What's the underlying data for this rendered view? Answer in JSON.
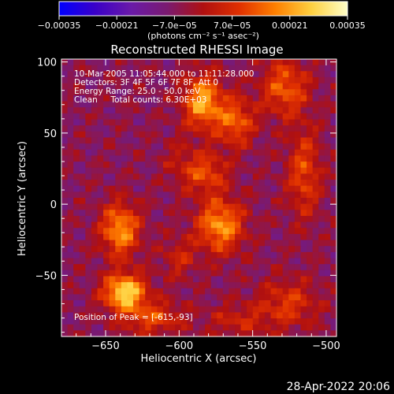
{
  "chart_data": {
    "type": "heatmap",
    "title": "Reconstructed RHESSI Image",
    "xlabel": "Heliocentric X (arcsec)",
    "ylabel": "Heliocentric Y (arcsec)",
    "xlim": [
      -680,
      -493
    ],
    "ylim": [
      -93,
      102
    ],
    "xticks": [
      -650,
      -600,
      -550,
      -500
    ],
    "xtick_labels": [
      "−650",
      "−600",
      "−550",
      "−500"
    ],
    "yticks": [
      -50,
      0,
      50,
      100
    ],
    "ytick_labels": [
      "−50",
      "0",
      "50",
      "100"
    ],
    "colorbar": {
      "range": [
        -0.00035,
        0.00035
      ],
      "ticks": [
        -0.00035,
        -0.00021,
        -7e-05,
        7e-05,
        0.00021,
        0.00035
      ],
      "tick_labels": [
        "−0.00035",
        "−0.00021",
        "−7.0e−05",
        "7.0e−05",
        "0.00021",
        "0.00035"
      ],
      "unit_label": "(photons cm⁻² s⁻¹ asec⁻²)",
      "colors": [
        "#0000ff",
        "#3a00c8",
        "#6a1aa8",
        "#7a1a70",
        "#b01010",
        "#e03000",
        "#ff8000",
        "#ffd040",
        "#ffffc8"
      ]
    },
    "annotations": [
      "10-Mar-2005 11:05:44.000 to 11:11:28.000",
      "Detectors: 3F 4F 5F 6F 7F 8F, Att 0",
      "Energy Range: 25.0 - 50.0 keV",
      "Clean     Total counts: 6.30E+03"
    ],
    "peak_label": "Position of Peak = [-615,-93]",
    "peak": [
      -615,
      -93
    ],
    "sources": [
      {
        "x": -637,
        "y": -62,
        "peak": 0.00035,
        "sx": 10,
        "sy": 9
      },
      {
        "x": -640,
        "y": -18,
        "peak": 0.00026,
        "sx": 9,
        "sy": 13
      },
      {
        "x": -618,
        "y": -80,
        "peak": 0.00016,
        "sx": 14,
        "sy": 8
      },
      {
        "x": -572,
        "y": -15,
        "peak": 0.00026,
        "sx": 11,
        "sy": 13
      },
      {
        "x": -582,
        "y": 22,
        "peak": 0.00017,
        "sx": 10,
        "sy": 10
      },
      {
        "x": -584,
        "y": 72,
        "peak": 0.00028,
        "sx": 9,
        "sy": 13
      },
      {
        "x": -562,
        "y": 58,
        "peak": 0.0002,
        "sx": 9,
        "sy": 12
      },
      {
        "x": -528,
        "y": 82,
        "peak": 0.00019,
        "sx": 11,
        "sy": 14
      },
      {
        "x": -515,
        "y": 22,
        "peak": 0.00016,
        "sx": 8,
        "sy": 22
      },
      {
        "x": -526,
        "y": -70,
        "peak": 0.00014,
        "sx": 14,
        "sy": 12
      },
      {
        "x": -560,
        "y": -82,
        "peak": 0.0001,
        "sx": 14,
        "sy": 8
      },
      {
        "x": -600,
        "y": -38,
        "peak": 0.0001,
        "sx": 8,
        "sy": 10
      },
      {
        "x": -600,
        "y": 30,
        "peak": 6e-05,
        "sx": 8,
        "sy": 12
      }
    ]
  },
  "footer": {
    "timestamp": "28-Apr-2022 20:06"
  }
}
